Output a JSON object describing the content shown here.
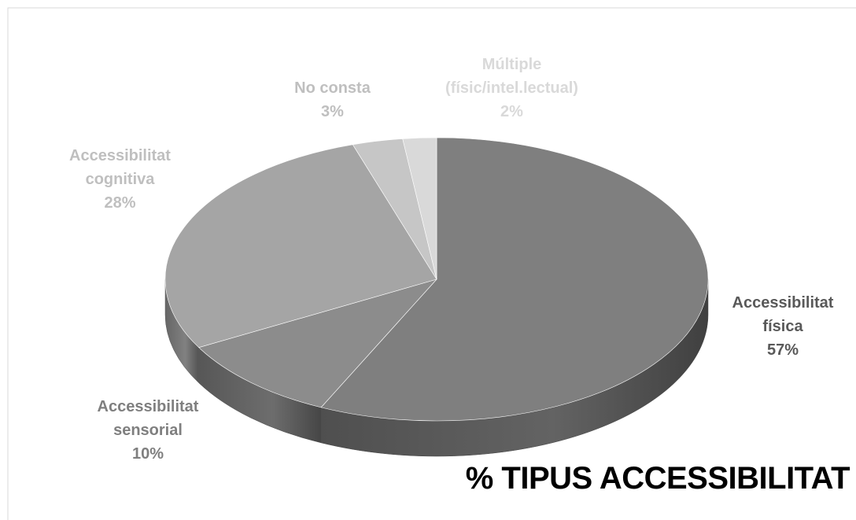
{
  "chart_data": {
    "type": "pie",
    "title": "% TIPUS ACCESSIBILITAT",
    "categories": [
      "Accessibilitat física",
      "Accessibilitat sensorial",
      "Accessibilitat cognitiva",
      "No consta",
      "Múltiple (físic/intel.lectual)"
    ],
    "values": [
      57,
      10,
      28,
      3,
      2
    ],
    "value_labels": [
      "57%",
      "10%",
      "28%",
      "3%",
      "2%"
    ],
    "colors": [
      "#7f7f7f",
      "#8c8c8c",
      "#a5a5a5",
      "#c6c6c6",
      "#d9d9d9"
    ]
  }
}
